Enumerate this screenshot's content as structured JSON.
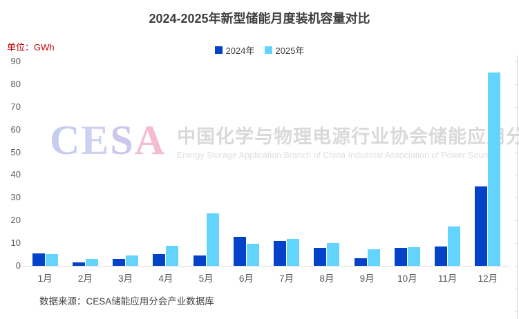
{
  "title": "2024-2025年新型储能月度装机容量对比",
  "unit_label": "单位：GWh",
  "source": "数据来源：CESA储能应用分会产业数据库",
  "watermark": {
    "logo_letters": [
      {
        "ch": "C",
        "color": "#c7cdf0"
      },
      {
        "ch": "E",
        "color": "#cdd2f2"
      },
      {
        "ch": "S",
        "color": "#cbc7ee"
      },
      {
        "ch": "A",
        "color": "#f5bccf"
      }
    ],
    "cn": "中国化学与物理电源行业协会储能应用分会",
    "en": "Energy Storage Application Branch of China Industrial Association of Power Sources"
  },
  "colors": {
    "series_2024": "#0443c8",
    "series_2025": "#63d4fd",
    "axis_text": "#595959",
    "axis_line": "#d9d9d9",
    "title_text": "#3f3f3f",
    "unit_text": "#c00000"
  },
  "chart_data": {
    "type": "bar",
    "categories": [
      "1月",
      "2月",
      "3月",
      "4月",
      "5月",
      "6月",
      "7月",
      "8月",
      "9月",
      "10月",
      "11月",
      "12月"
    ],
    "series": [
      {
        "name": "2024年",
        "color": "#0443c8",
        "values": [
          5.5,
          1.4,
          3.1,
          5.2,
          4.6,
          12.9,
          11.0,
          8.0,
          3.4,
          7.8,
          8.5,
          35.0
        ]
      },
      {
        "name": "2025年",
        "color": "#63d4fd",
        "values": [
          5.2,
          3.0,
          4.7,
          8.9,
          23.0,
          9.8,
          11.9,
          10.1,
          7.4,
          8.3,
          17.4,
          85.0
        ]
      }
    ],
    "title": "2024-2025年新型储能月度装机容量对比",
    "xlabel": "",
    "ylabel": "GWh",
    "ylim": [
      0,
      90
    ],
    "yticks": [
      0,
      10,
      20,
      30,
      40,
      50,
      60,
      70,
      80,
      90
    ],
    "grid": false,
    "legend_position": "top"
  }
}
